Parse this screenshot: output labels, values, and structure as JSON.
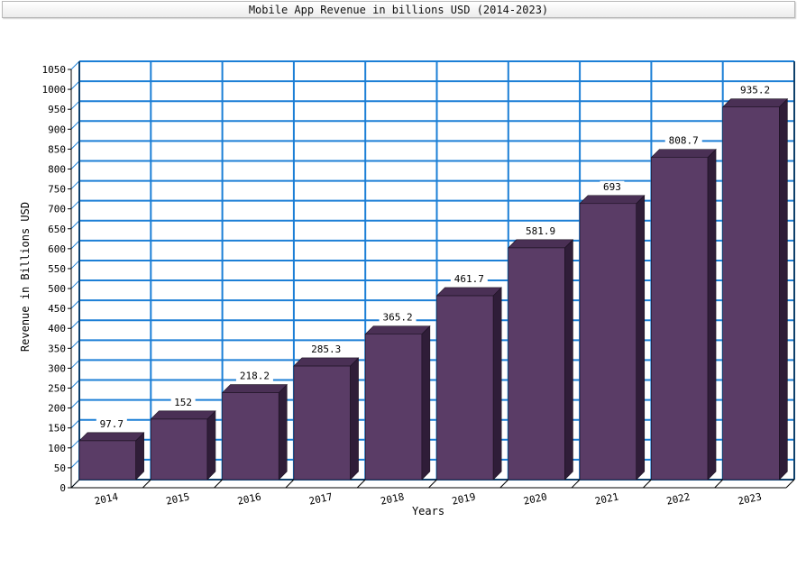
{
  "chart_data": {
    "type": "bar",
    "title": "Mobile App Revenue in billions USD (2014-2023)",
    "xlabel": "Years",
    "ylabel": "Revenue in Billions USD",
    "categories": [
      "2014",
      "2015",
      "2016",
      "2017",
      "2018",
      "2019",
      "2020",
      "2021",
      "2022",
      "2023"
    ],
    "values": [
      97.7,
      152,
      218.2,
      285.3,
      365.2,
      461.7,
      581.9,
      693,
      808.7,
      935.2
    ],
    "data_labels": [
      "97.7",
      "152",
      "218.2",
      "285.3",
      "365.2",
      "461.7",
      "581.9",
      "693",
      "808.7",
      "935.2"
    ],
    "ylim": [
      0,
      1050
    ],
    "ytick_step": 50,
    "grid": true,
    "style": "3d",
    "colors": {
      "bar_front": "#5a3c66",
      "bar_side": "#2f1d38",
      "bar_top": "#4a3055",
      "grid": "#1c7fd6",
      "label_box": "#ffffff"
    }
  }
}
